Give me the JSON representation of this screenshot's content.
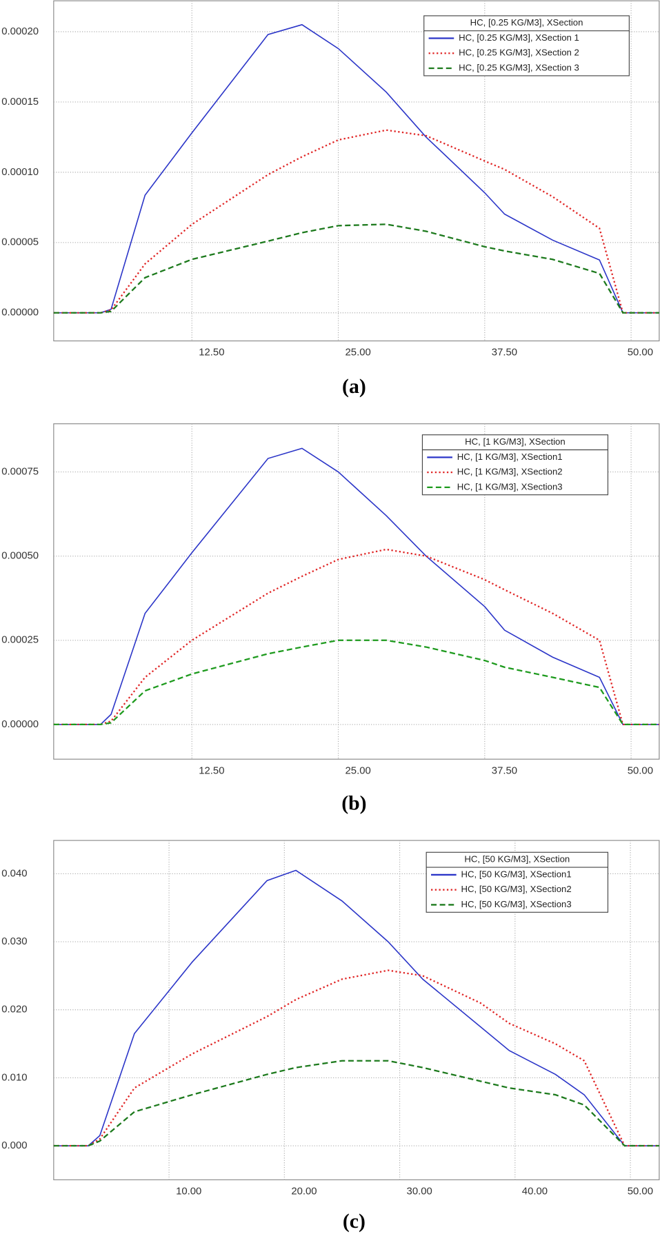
{
  "chart_data": [
    {
      "type": "line",
      "caption": "(a)",
      "legend_title": "HC, [0.25 KG/M3], XSection",
      "grid": true,
      "x": [
        0.7,
        4.7,
        5.6,
        8.5,
        12.5,
        19.0,
        21.9,
        25.0,
        29.1,
        32.5,
        37.5,
        39.2,
        43.3,
        47.3,
        49.3,
        52.4
      ],
      "xlim": [
        0.7,
        52.4
      ],
      "ylim": [
        -2e-05,
        0.000222
      ],
      "xticks": [
        {
          "value": 12.5,
          "label": "12.50"
        },
        {
          "value": 25,
          "label": "25.00"
        },
        {
          "value": 37.5,
          "label": "37.50"
        },
        {
          "value": 50,
          "label": "50.00"
        }
      ],
      "yticks": [
        {
          "value": 0,
          "label": "0.00000"
        },
        {
          "value": 5e-05,
          "label": "0.00005"
        },
        {
          "value": 0.0001,
          "label": "0.00010"
        },
        {
          "value": 0.00015,
          "label": "0.00015"
        },
        {
          "value": 0.0002,
          "label": "0.00020"
        }
      ],
      "series": [
        {
          "name": "HC, [0.25 KG/M3], XSection 1",
          "color": "#2b35c8",
          "dash": "solid",
          "values": [
            0,
            0,
            2.5e-06,
            8.37e-05,
            0.000128,
            0.000198,
            0.000205,
            0.000188,
            0.000157,
            0.000125,
            8.54e-05,
            7.02e-05,
            5.17e-05,
            3.76e-05,
            0,
            0
          ]
        },
        {
          "name": "HC, [0.25 KG/M3], XSection 2",
          "color": "#e02424",
          "dash": "dotted",
          "values": [
            0,
            0,
            2e-06,
            3.48e-05,
            6.29e-05,
            9.83e-05,
            0.000111,
            0.000123,
            0.00013,
            0.000126,
            0.000108,
            0.000102,
            8.26e-05,
            6.01e-05,
            0,
            0
          ]
        },
        {
          "name": "HC, [0.25 KG/M3], XSection 3",
          "color": "#1d7a1d",
          "dash": "dashed",
          "values": [
            0,
            0,
            1e-06,
            2.5e-05,
            3.8e-05,
            5.1e-05,
            5.7e-05,
            6.2e-05,
            6.3e-05,
            5.8e-05,
            4.7e-05,
            4.4e-05,
            3.8e-05,
            2.8e-05,
            0,
            0
          ]
        }
      ]
    },
    {
      "type": "line",
      "caption": "(b)",
      "legend_title": "HC, [1 KG/M3], XSection",
      "grid": true,
      "x": [
        0.7,
        4.7,
        5.6,
        8.5,
        12.5,
        19.0,
        21.9,
        25.0,
        29.1,
        32.5,
        37.5,
        39.2,
        43.3,
        47.3,
        49.3,
        52.4
      ],
      "xlim": [
        0.7,
        52.4
      ],
      "ylim": [
        -0.000103,
        0.000893
      ],
      "xticks": [
        {
          "value": 12.5,
          "label": "12.50"
        },
        {
          "value": 25,
          "label": "25.00"
        },
        {
          "value": 37.5,
          "label": "37.50"
        },
        {
          "value": 50,
          "label": "50.00"
        }
      ],
      "yticks": [
        {
          "value": 0,
          "label": "0.00000"
        },
        {
          "value": 0.00025,
          "label": "0.00025"
        },
        {
          "value": 0.0005,
          "label": "0.00050"
        },
        {
          "value": 0.00075,
          "label": "0.00075"
        }
      ],
      "series": [
        {
          "name": "HC, [1 KG/M3], XSection1",
          "color": "#2b35c8",
          "dash": "solid",
          "values": [
            0,
            0,
            3e-05,
            0.00033,
            0.00051,
            0.00079,
            0.00082,
            0.00075,
            0.00062,
            0.0005,
            0.00035,
            0.00028,
            0.0002,
            0.00014,
            0,
            0
          ]
        },
        {
          "name": "HC, [1 KG/M3], XSection2",
          "color": "#e02424",
          "dash": "dotted",
          "values": [
            0,
            0,
            1e-05,
            0.00014,
            0.00025,
            0.00039,
            0.00044,
            0.00049,
            0.00052,
            0.0005,
            0.00043,
            0.0004,
            0.00033,
            0.00025,
            0,
            0
          ]
        },
        {
          "name": "HC, [1 KG/M3], XSection3",
          "color": "#1d9a1d",
          "dash": "dashed",
          "values": [
            0,
            0,
            5e-06,
            0.0001,
            0.00015,
            0.00021,
            0.00023,
            0.00025,
            0.00025,
            0.00023,
            0.00019,
            0.00017,
            0.00014,
            0.00011,
            0,
            0
          ]
        }
      ]
    },
    {
      "type": "line",
      "caption": "(c)",
      "legend_title": "HC, [50 KG/M3], XSection",
      "grid": true,
      "x": [
        0,
        3,
        4,
        7,
        12,
        18.5,
        21,
        25,
        29,
        32,
        37,
        39.5,
        43.5,
        46,
        49.5,
        52.5
      ],
      "xlim": [
        0,
        52.5
      ],
      "ylim": [
        -0.005,
        0.0449
      ],
      "xticks": [
        {
          "value": 10,
          "label": "10.00"
        },
        {
          "value": 20,
          "label": "20.00"
        },
        {
          "value": 30,
          "label": "30.00"
        },
        {
          "value": 40,
          "label": "40.00"
        },
        {
          "value": 50,
          "label": "50.00"
        }
      ],
      "yticks": [
        {
          "value": 0,
          "label": "0.000"
        },
        {
          "value": 0.01,
          "label": "0.010"
        },
        {
          "value": 0.02,
          "label": "0.020"
        },
        {
          "value": 0.03,
          "label": "0.030"
        },
        {
          "value": 0.04,
          "label": "0.040"
        }
      ],
      "series": [
        {
          "name": "HC, [50 KG/M3], XSection1",
          "color": "#2b35c8",
          "dash": "solid",
          "values": [
            0,
            0,
            0.0015,
            0.0165,
            0.027,
            0.039,
            0.0405,
            0.036,
            0.03,
            0.0245,
            0.0175,
            0.014,
            0.0105,
            0.0075,
            0,
            0
          ]
        },
        {
          "name": "HC, [50 KG/M3], XSection2",
          "color": "#e02424",
          "dash": "dotted",
          "values": [
            0,
            0,
            0.001,
            0.0085,
            0.0135,
            0.019,
            0.0215,
            0.0245,
            0.0258,
            0.025,
            0.021,
            0.018,
            0.015,
            0.0125,
            0,
            0
          ]
        },
        {
          "name": "HC, [50 KG/M3], XSection3",
          "color": "#1d7a1d",
          "dash": "dashed",
          "values": [
            0,
            0,
            0.0007,
            0.005,
            0.0075,
            0.0105,
            0.0115,
            0.0125,
            0.0125,
            0.0115,
            0.0095,
            0.0085,
            0.0075,
            0.006,
            0,
            0
          ]
        }
      ]
    }
  ]
}
